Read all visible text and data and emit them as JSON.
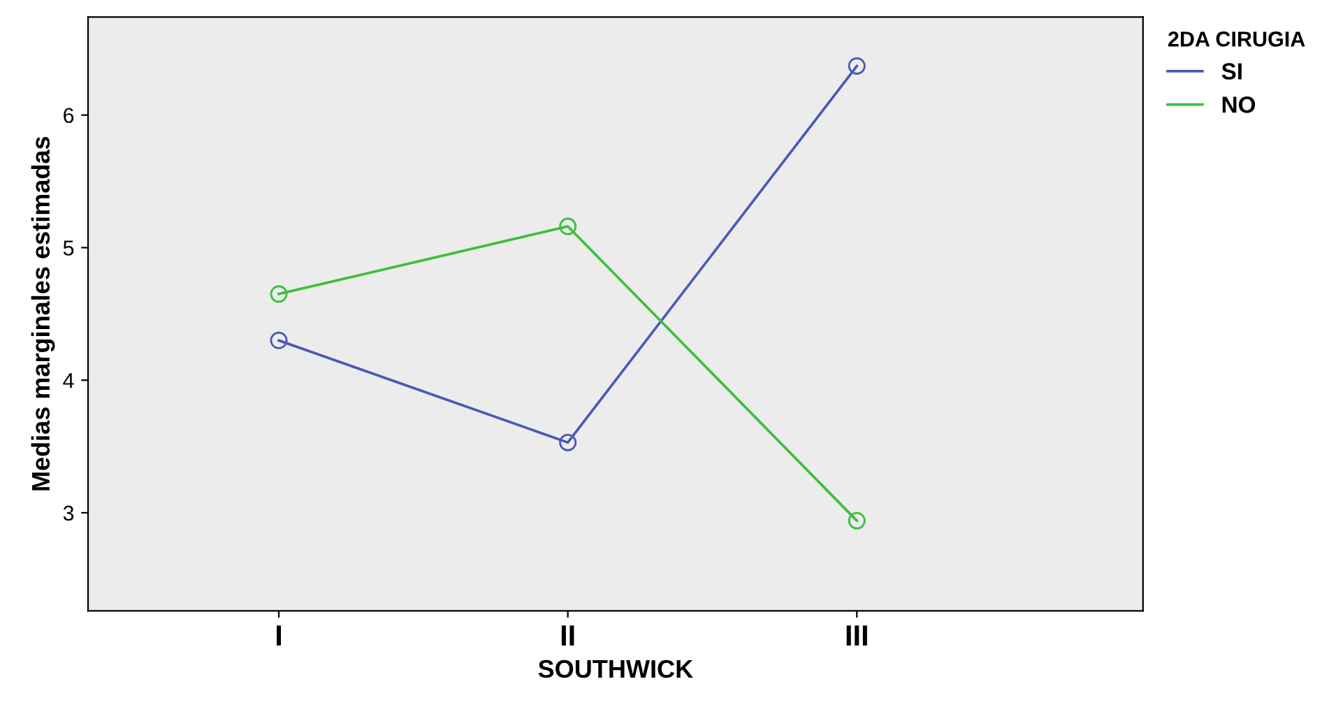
{
  "chart_data": {
    "type": "line",
    "xlabel": "SOUTHWICK",
    "ylabel": "Medias marginales estimadas",
    "legend_title": "2DA CIRUGIA",
    "categories": [
      "I",
      "II",
      "III"
    ],
    "series": [
      {
        "name": "SI",
        "color": "#4a58b8",
        "values": [
          4.3,
          3.53,
          6.37
        ]
      },
      {
        "name": "NO",
        "color": "#3cbf3c",
        "values": [
          4.65,
          5.16,
          2.94
        ]
      }
    ],
    "ylim": [
      2.26,
      6.74
    ],
    "yticks": [
      3,
      4,
      5,
      6
    ],
    "grid": false,
    "legend": "right",
    "marker": "circle",
    "line_style": "solid"
  }
}
